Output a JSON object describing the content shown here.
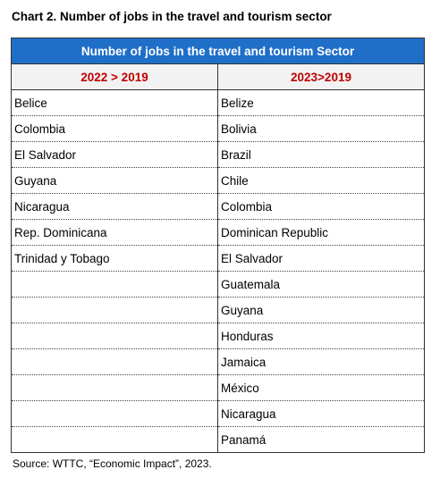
{
  "header": {
    "title": "Chart 2. Number of jobs in the travel and tourism sector"
  },
  "table": {
    "caption": "Number of jobs in the travel and tourism Sector",
    "columns": [
      {
        "header": "2022 > 2019",
        "items": [
          "Belice",
          "Colombia",
          "El Salvador",
          "Guyana",
          "Nicaragua",
          "Rep. Dominicana",
          "Trinidad y Tobago"
        ]
      },
      {
        "header": "2023>2019",
        "items": [
          "Belize",
          "Bolivia",
          "Brazil",
          "Chile",
          "Colombia",
          "Dominican Republic",
          "El Salvador",
          "Guatemala",
          "Guyana",
          "Honduras",
          "Jamaica",
          "México",
          "Nicaragua",
          "Panamá"
        ]
      }
    ]
  },
  "footer": {
    "source": "Source: WTTC, “Economic Impact”, 2023."
  }
}
